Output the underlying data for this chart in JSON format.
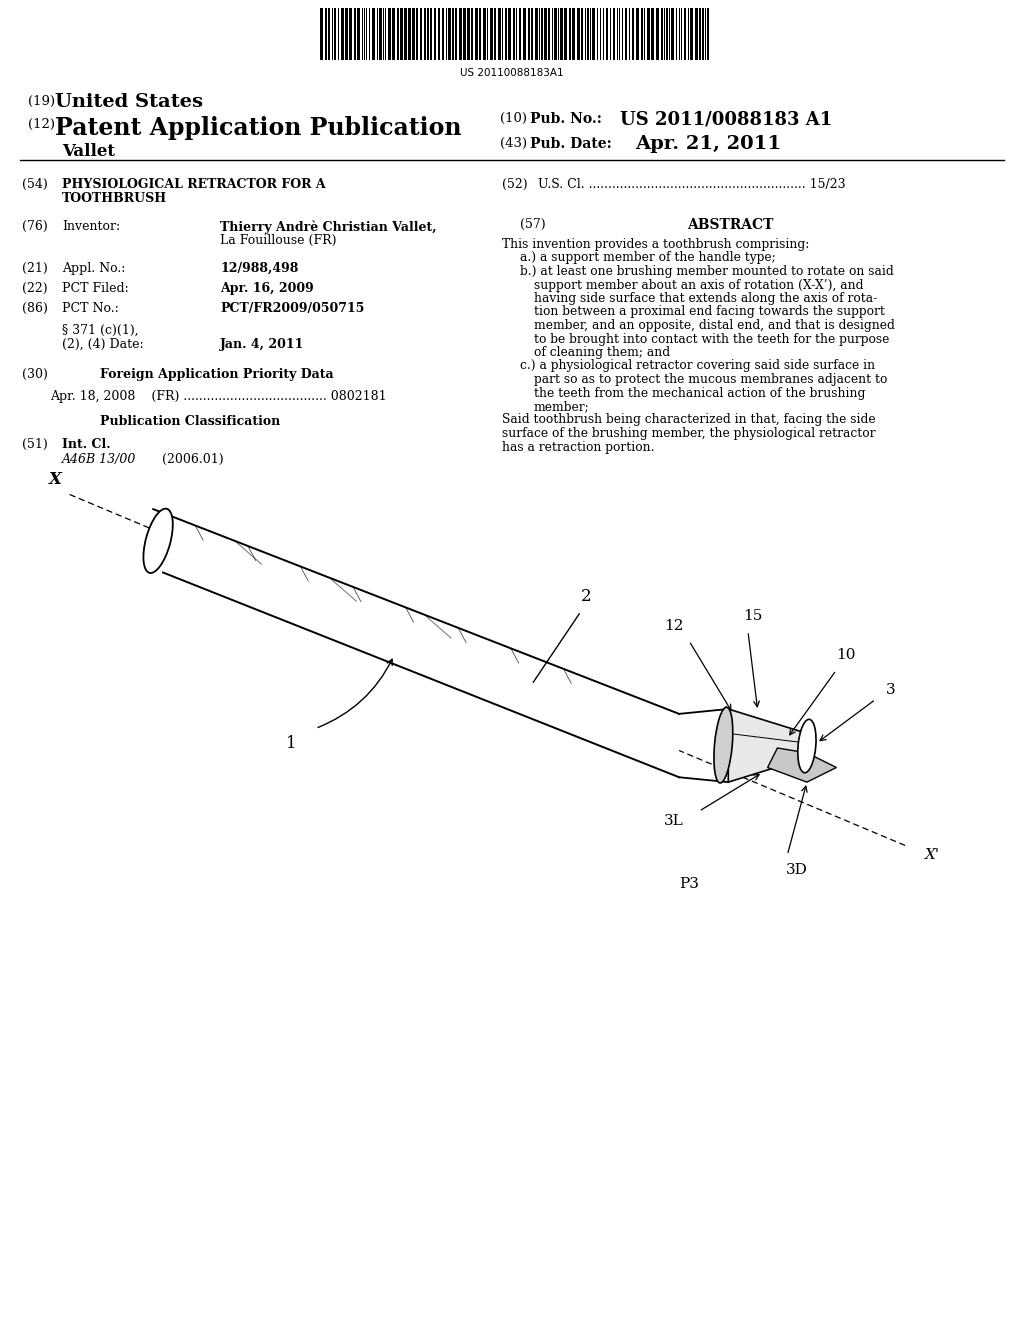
{
  "title_19": "(19) United States",
  "title_12": "(12) Patent Application Publication",
  "pub_no_label": "(10) Pub. No.:",
  "pub_no": "US 2011/0088183 A1",
  "pub_date_label": "(43) Pub. Date:",
  "pub_date": "Apr. 21, 2011",
  "inventor_name": "Vallet",
  "barcode_text": "US 20110088183A1",
  "field54_label": "(54)",
  "field52_label": "(52)",
  "field52_text": "U.S. Cl. ........................................................ 15/23",
  "field76_label": "(76)",
  "field57_label": "(57)",
  "field57_title": "ABSTRACT",
  "field21_label": "(21)",
  "field21_val": "12/988,498",
  "field22_label": "(22)",
  "field22_val": "Apr. 16, 2009",
  "field86_label": "(86)",
  "field86_val": "PCT/FR2009/050715",
  "field371_val": "Jan. 4, 2011",
  "field30_label": "(30)",
  "field30_data": "Apr. 18, 2008    (FR) ..................................... 0802181",
  "field51_class": "A46B 13/00",
  "field51_year": "(2006.01)",
  "background_color": "#ffffff",
  "text_color": "#000000"
}
